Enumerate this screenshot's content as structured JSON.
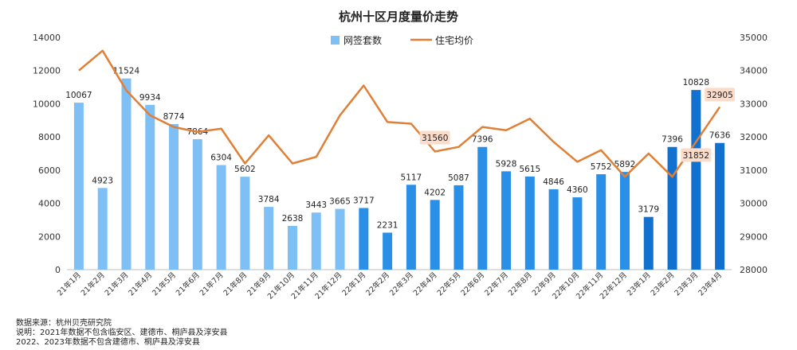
{
  "chart_data": {
    "type": "bar+line",
    "title": "杭州十区月度量价走势",
    "categories": [
      "21年1月",
      "21年2月",
      "21年3月",
      "21年4月",
      "21年5月",
      "21年6月",
      "21年7月",
      "21年8月",
      "21年9月",
      "21年10月",
      "21年11月",
      "21年12月",
      "22年1月",
      "22年2月",
      "22年3月",
      "22年4月",
      "22年5月",
      "22年6月",
      "22年7月",
      "22年8月",
      "22年9月",
      "22年10月",
      "22年11月",
      "22年12月",
      "23年1月",
      "23年2月",
      "23年3月",
      "23年4月"
    ],
    "bar_series": {
      "name": "网签套数",
      "axis": "left",
      "values": [
        10067,
        4923,
        11524,
        9934,
        8774,
        7864,
        6304,
        5602,
        3784,
        2638,
        3443,
        3665,
        3717,
        2231,
        5117,
        4202,
        5087,
        7396,
        5928,
        5615,
        4846,
        4360,
        5752,
        5892,
        3179,
        7396,
        10828,
        7636
      ],
      "colors_by_year": {
        "2021": "#7ec0f5",
        "2022": "#2a8fe6",
        "2023": "#1270cf"
      }
    },
    "line_series": {
      "name": "住宅均价",
      "axis": "right",
      "color": "#e07f35",
      "values": [
        34000,
        34600,
        33400,
        32650,
        32300,
        32150,
        32250,
        31200,
        32050,
        31200,
        31400,
        32650,
        33550,
        32450,
        32400,
        31560,
        31700,
        32300,
        32200,
        32550,
        31850,
        31250,
        31600,
        30800,
        31500,
        30800,
        31852,
        32905
      ],
      "highlighted_labels": [
        {
          "index": 15,
          "text": "31560"
        },
        {
          "index": 26,
          "text": "31852"
        },
        {
          "index": 27,
          "text": "32905"
        }
      ]
    },
    "y_left": {
      "min": 0,
      "max": 14000,
      "ticks": [
        0,
        2000,
        4000,
        6000,
        8000,
        10000,
        12000,
        14000
      ]
    },
    "y_right": {
      "min": 28000,
      "max": 35000,
      "ticks": [
        28000,
        29000,
        30000,
        31000,
        32000,
        33000,
        34000,
        35000
      ]
    },
    "legend_position": "top",
    "label_highlight_color": "#fbdccb",
    "grid": false
  },
  "footnotes": [
    "数据来源：杭州贝壳研究院",
    "说明：2021年数据不包含临安区、建德市、桐庐县及淳安县",
    "2022、2023年数据不包含建德市、桐庐县及淳安县"
  ]
}
